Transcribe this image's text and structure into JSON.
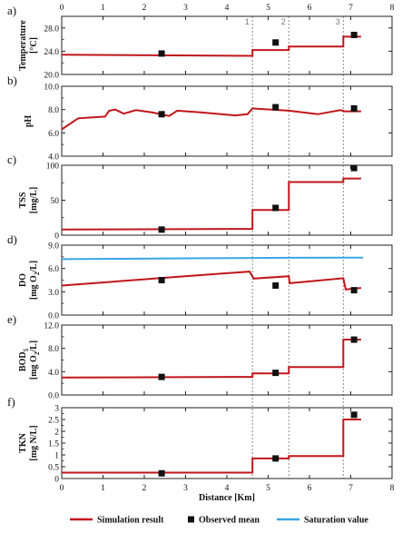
{
  "chart_data": [
    {
      "panel": "a)",
      "type": "line",
      "ylabel": [
        "Temperature",
        "[°C]"
      ],
      "ylim": [
        20,
        30
      ],
      "yticks": [
        "20.0",
        "24.0",
        "28.0"
      ],
      "ytick_values": [
        20,
        24,
        28
      ],
      "series": [
        {
          "role": "simulation",
          "x": [
            0,
            4.62,
            4.62,
            5.5,
            5.5,
            6.82,
            6.82,
            7.25
          ],
          "y": [
            23.4,
            23.2,
            24.2,
            24.2,
            24.8,
            24.8,
            26.5,
            26.5
          ]
        }
      ],
      "observed": {
        "x": [
          2.42,
          5.18,
          7.08
        ],
        "y": [
          23.6,
          25.5,
          26.8
        ]
      }
    },
    {
      "panel": "b)",
      "type": "line",
      "ylabel": [
        "pH"
      ],
      "ylim": [
        4.0,
        10.0
      ],
      "yticks": [
        "4.0",
        "6.0",
        "8.0",
        "10.0"
      ],
      "ytick_values": [
        4,
        6,
        8,
        10
      ],
      "series": [
        {
          "role": "simulation",
          "x": [
            0,
            0.4,
            1.05,
            1.15,
            1.3,
            1.5,
            1.8,
            2.2,
            2.6,
            2.8,
            3.4,
            4.2,
            4.5,
            4.62,
            4.8,
            5.1,
            5.5,
            6.2,
            6.75,
            6.85,
            7.25
          ],
          "y": [
            6.3,
            7.25,
            7.4,
            7.9,
            8.0,
            7.65,
            7.95,
            7.75,
            7.45,
            7.9,
            7.75,
            7.5,
            7.6,
            8.1,
            8.05,
            8.0,
            7.9,
            7.6,
            7.95,
            7.85,
            7.85
          ]
        }
      ],
      "observed": {
        "x": [
          2.42,
          5.18,
          7.08
        ],
        "y": [
          7.6,
          8.2,
          8.1
        ]
      }
    },
    {
      "panel": "c)",
      "type": "line",
      "ylabel": [
        "TSS",
        "[mg/L]"
      ],
      "ylim": [
        0,
        100
      ],
      "yticks": [
        "0",
        "50",
        "100"
      ],
      "ytick_values": [
        0,
        50,
        100
      ],
      "series": [
        {
          "role": "simulation",
          "x": [
            0,
            4.62,
            4.62,
            5.5,
            5.5,
            6.82,
            6.82,
            7.25
          ],
          "y": [
            8,
            9,
            36,
            36,
            76,
            76,
            81,
            81
          ]
        }
      ],
      "observed": {
        "x": [
          2.42,
          5.18,
          7.08
        ],
        "y": [
          8,
          39,
          96
        ]
      }
    },
    {
      "panel": "d)",
      "type": "line",
      "ylabel": [
        "DO",
        "[mg O2/L]"
      ],
      "ylim": [
        0,
        9
      ],
      "yticks": [
        "0.0",
        "3.0",
        "6.0",
        "9.0"
      ],
      "ytick_values": [
        0,
        3,
        6,
        9
      ],
      "series": [
        {
          "role": "simulation",
          "x": [
            0,
            2.5,
            4.55,
            4.65,
            5.5,
            5.52,
            6.82,
            6.88,
            7.25
          ],
          "y": [
            3.8,
            4.8,
            5.6,
            4.7,
            5.0,
            4.1,
            4.75,
            3.3,
            3.5
          ]
        },
        {
          "role": "saturation",
          "x": [
            0,
            1.5,
            3.0,
            4.6,
            5.5,
            7.3
          ],
          "y": [
            7.2,
            7.25,
            7.3,
            7.35,
            7.38,
            7.4
          ]
        }
      ],
      "observed": {
        "x": [
          2.42,
          5.18,
          7.08
        ],
        "y": [
          4.5,
          3.8,
          3.2
        ]
      }
    },
    {
      "panel": "e)",
      "type": "line",
      "ylabel": [
        "BOD5",
        "[mg O2/L]"
      ],
      "ylim": [
        0,
        12
      ],
      "yticks": [
        "0.0",
        "4.0",
        "8.0",
        "12.0"
      ],
      "ytick_values": [
        0,
        4,
        8,
        12
      ],
      "series": [
        {
          "role": "simulation",
          "x": [
            0,
            4.62,
            4.62,
            5.5,
            5.5,
            6.82,
            6.82,
            7.25
          ],
          "y": [
            3.0,
            3.1,
            3.7,
            3.7,
            4.8,
            4.8,
            9.5,
            9.5
          ]
        }
      ],
      "observed": {
        "x": [
          2.42,
          5.18,
          7.08
        ],
        "y": [
          3.1,
          3.8,
          9.5
        ]
      }
    },
    {
      "panel": "f)",
      "type": "line",
      "ylabel": [
        "TKN",
        "[mg N/L]"
      ],
      "ylim": [
        0,
        3
      ],
      "yticks": [
        "0",
        "0.5",
        "1",
        "1.5",
        "2",
        "2.5",
        "3"
      ],
      "ytick_values": [
        0,
        0.5,
        1,
        1.5,
        2,
        2.5,
        3
      ],
      "series": [
        {
          "role": "simulation",
          "x": [
            0,
            4.62,
            4.62,
            5.5,
            5.5,
            6.82,
            6.82,
            7.25
          ],
          "y": [
            0.25,
            0.25,
            0.85,
            0.85,
            0.95,
            0.95,
            2.5,
            2.5
          ]
        }
      ],
      "observed": {
        "x": [
          2.42,
          5.18,
          7.08
        ],
        "y": [
          0.22,
          0.85,
          2.7
        ]
      }
    }
  ],
  "x_axis": {
    "xlabel": "Distance [Km]",
    "xlim": [
      0,
      8
    ],
    "xticks": [
      "0",
      "1",
      "2",
      "3",
      "4",
      "5",
      "6",
      "7",
      "8"
    ],
    "xtick_values": [
      0,
      1,
      2,
      3,
      4,
      5,
      6,
      7,
      8
    ]
  },
  "segment_boundaries": {
    "x": [
      4.62,
      5.5,
      6.82
    ],
    "labels": [
      "1",
      "2",
      "3"
    ]
  },
  "legend": {
    "simulation": "Simulation result",
    "observed": "Observed mean",
    "saturation": "Saturation value"
  },
  "colors": {
    "simulation": "#c0161c",
    "saturation": "#3aa6e4",
    "observed": "#111111",
    "boundary": "#8a8a8a",
    "axis": "#222222"
  }
}
